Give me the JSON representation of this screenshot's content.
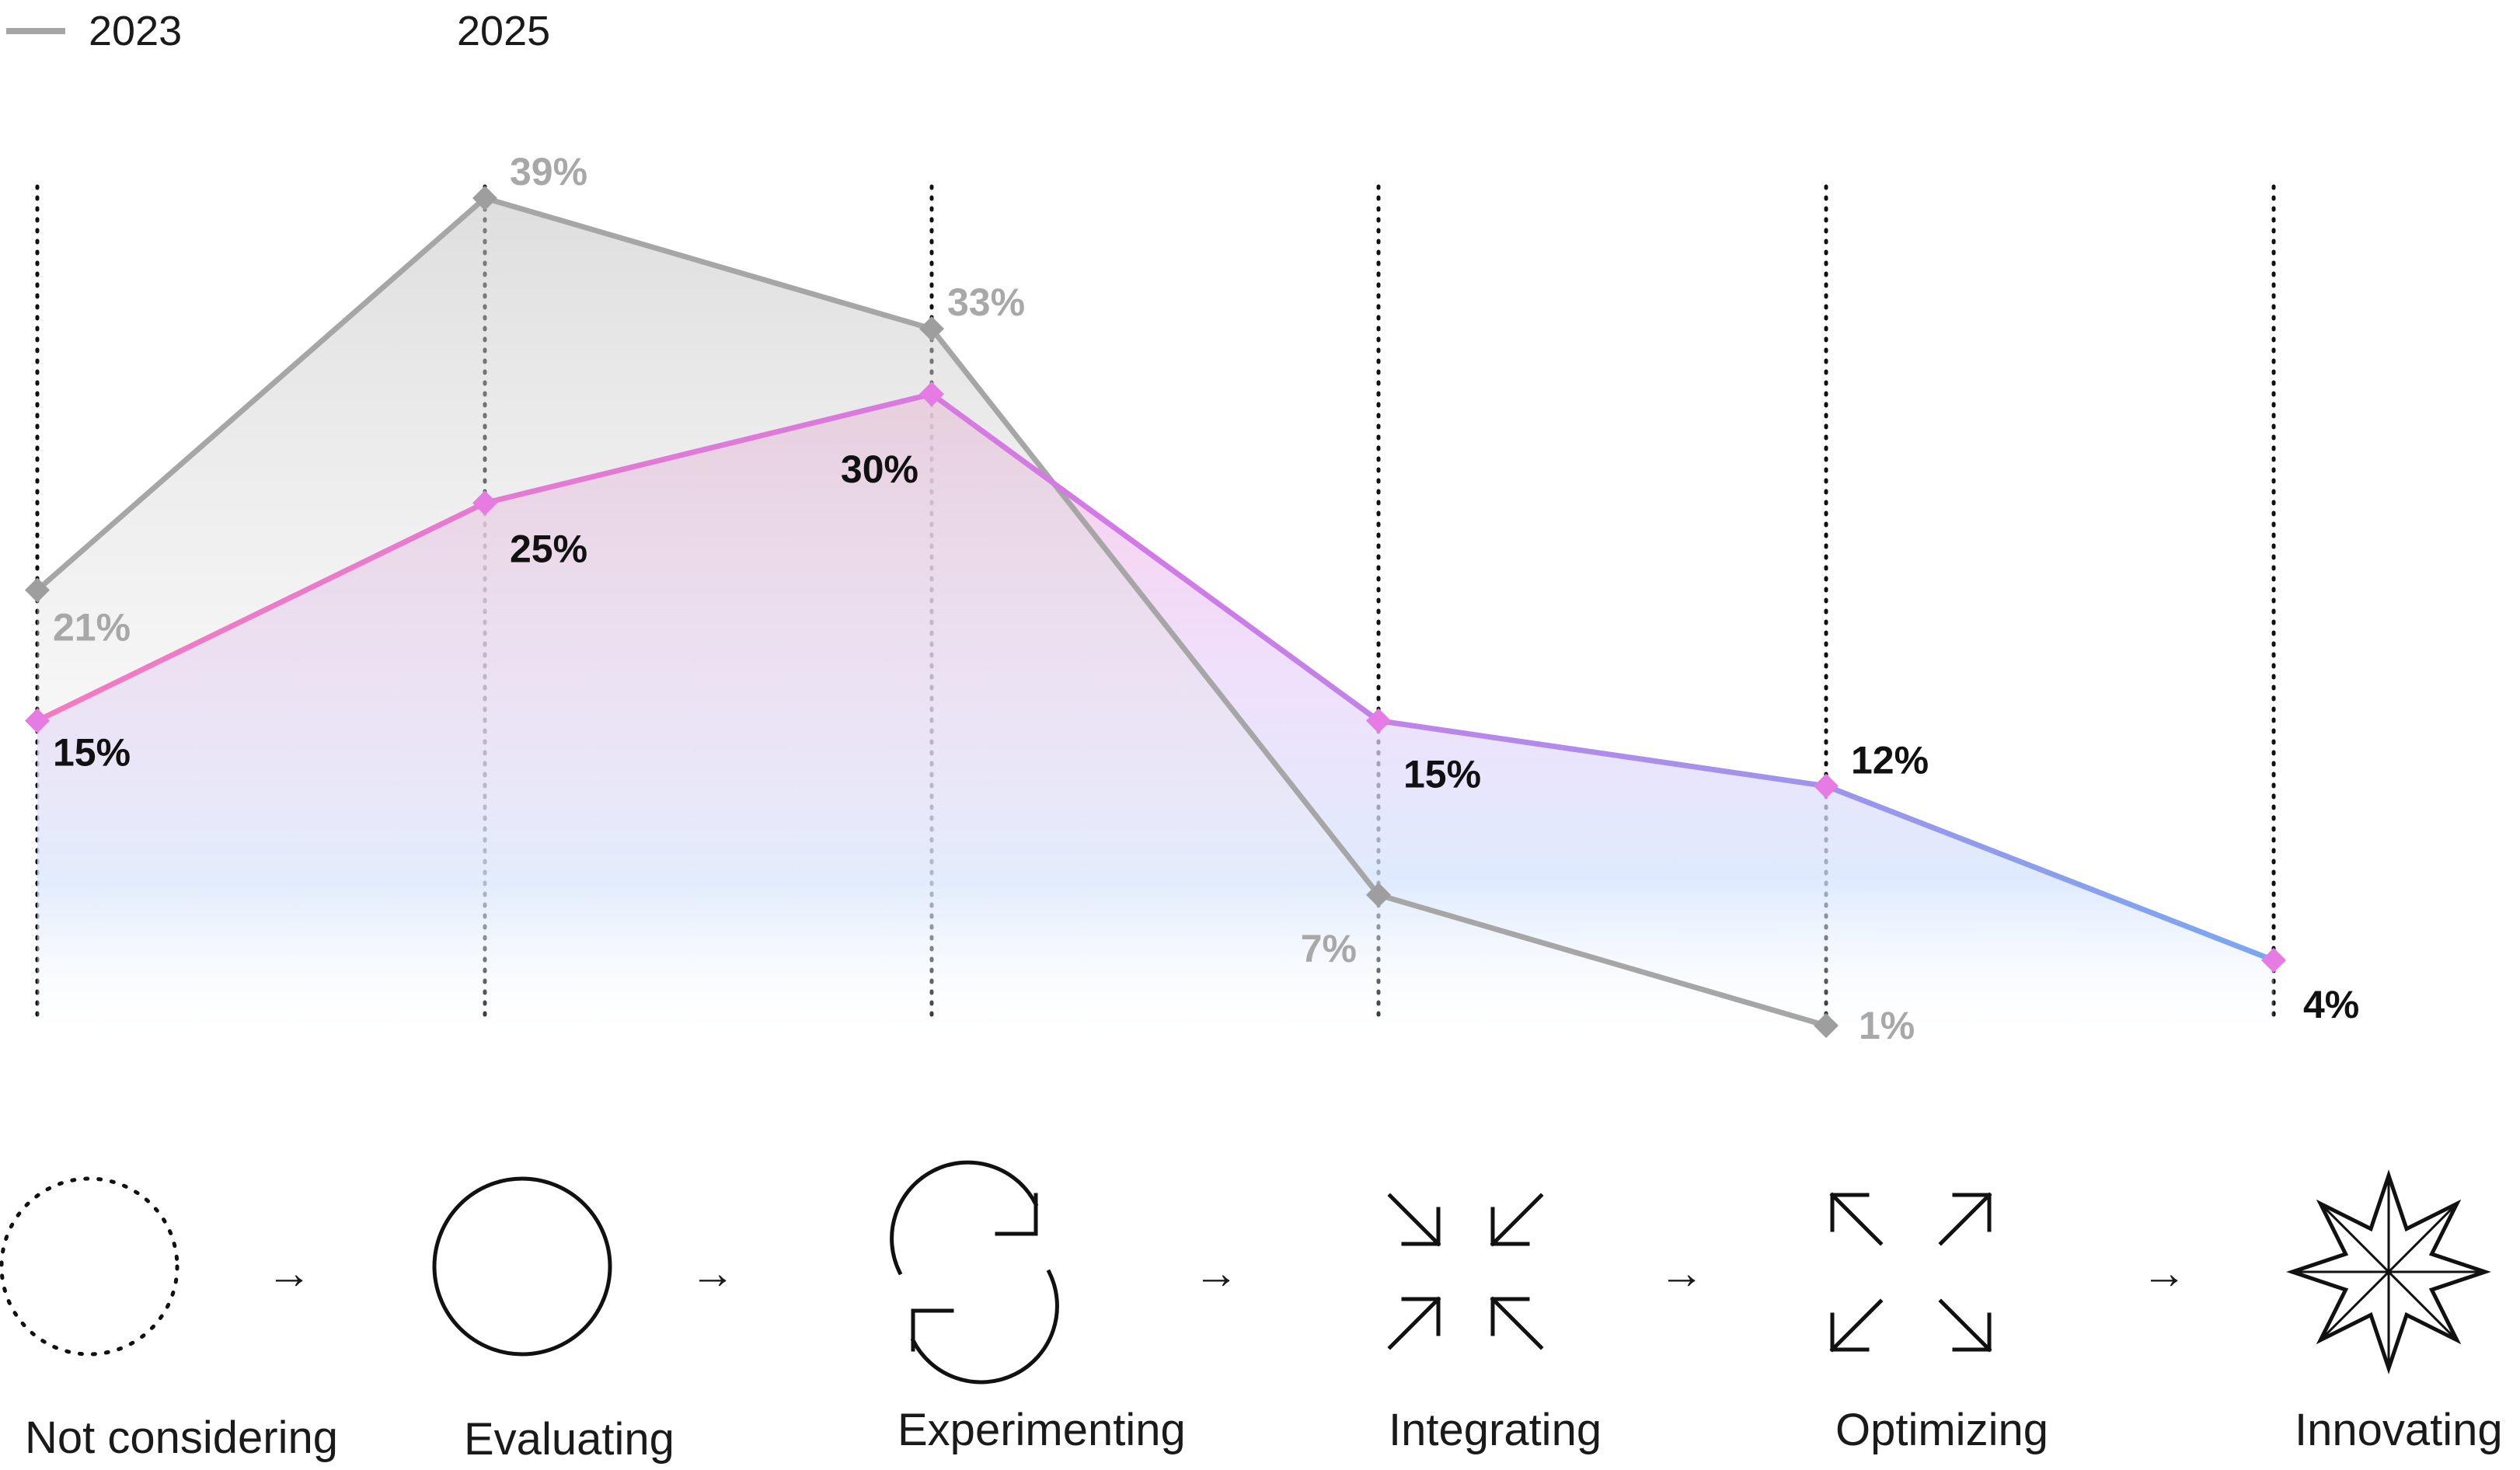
{
  "chart_data": {
    "type": "line",
    "categories": [
      "Not considering",
      "Evaluating",
      "Experimenting",
      "Integrating",
      "Optimizing",
      "Innovating"
    ],
    "ylim": [
      0,
      45
    ],
    "grid": "vertical-dotted",
    "legend_position": "top-left",
    "series": [
      {
        "name": "2023",
        "color": "#a6a6a6",
        "values": [
          21,
          39,
          33,
          7,
          1,
          null
        ],
        "labels": [
          "21%",
          "39%",
          "33%",
          "7%",
          "1%",
          ""
        ]
      },
      {
        "name": "2025",
        "color_start": "#f57ac0",
        "color_mid": "#d07ae8",
        "color_end": "#7aa7f0",
        "marker_color": "#e67be3",
        "values": [
          15,
          25,
          30,
          15,
          12,
          4
        ],
        "labels": [
          "15%",
          "25%",
          "30%",
          "15%",
          "12%",
          "4%"
        ]
      }
    ]
  },
  "stages": [
    {
      "label": "Not considering",
      "icon": "dotted-circle-icon"
    },
    {
      "label": "Evaluating",
      "icon": "circle-icon"
    },
    {
      "label": "Experimenting",
      "icon": "refresh-cycle-icon"
    },
    {
      "label": "Integrating",
      "icon": "arrows-inward-icon"
    },
    {
      "label": "Optimizing",
      "icon": "arrows-outward-icon"
    },
    {
      "label": "Innovating",
      "icon": "eight-point-star-icon"
    }
  ],
  "arrow_glyph": "→"
}
